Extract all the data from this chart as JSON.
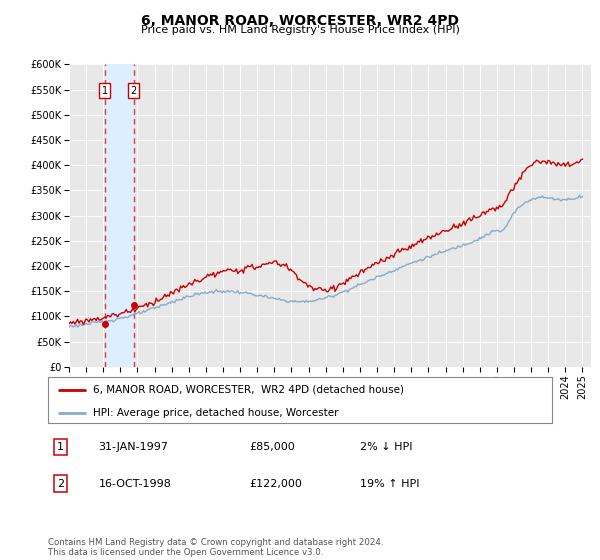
{
  "title": "6, MANOR ROAD, WORCESTER, WR2 4PD",
  "subtitle": "Price paid vs. HM Land Registry's House Price Index (HPI)",
  "ylim": [
    0,
    600000
  ],
  "yticks": [
    0,
    50000,
    100000,
    150000,
    200000,
    250000,
    300000,
    350000,
    400000,
    450000,
    500000,
    550000,
    600000
  ],
  "ytick_labels": [
    "£0",
    "£50K",
    "£100K",
    "£150K",
    "£200K",
    "£250K",
    "£300K",
    "£350K",
    "£400K",
    "£450K",
    "£500K",
    "£550K",
    "£600K"
  ],
  "xlim_start": 1995.0,
  "xlim_end": 2025.5,
  "plot_bg_color": "#e8e8e8",
  "grid_color": "#ffffff",
  "sale1_x": 1997.08,
  "sale1_y": 85000,
  "sale2_x": 1998.79,
  "sale2_y": 122000,
  "line_color_property": "#cc0000",
  "line_color_hpi": "#88aacc",
  "marker_color": "#cc0000",
  "shade_color": "#ddeeff",
  "vline_color": "#ee3333",
  "legend_label_property": "6, MANOR ROAD, WORCESTER,  WR2 4PD (detached house)",
  "legend_label_hpi": "HPI: Average price, detached house, Worcester",
  "sale1_date": "31-JAN-1997",
  "sale1_price": "£85,000",
  "sale1_hpi": "2% ↓ HPI",
  "sale2_date": "16-OCT-1998",
  "sale2_price": "£122,000",
  "sale2_hpi": "19% ↑ HPI",
  "footer": "Contains HM Land Registry data © Crown copyright and database right 2024.\nThis data is licensed under the Open Government Licence v3.0."
}
